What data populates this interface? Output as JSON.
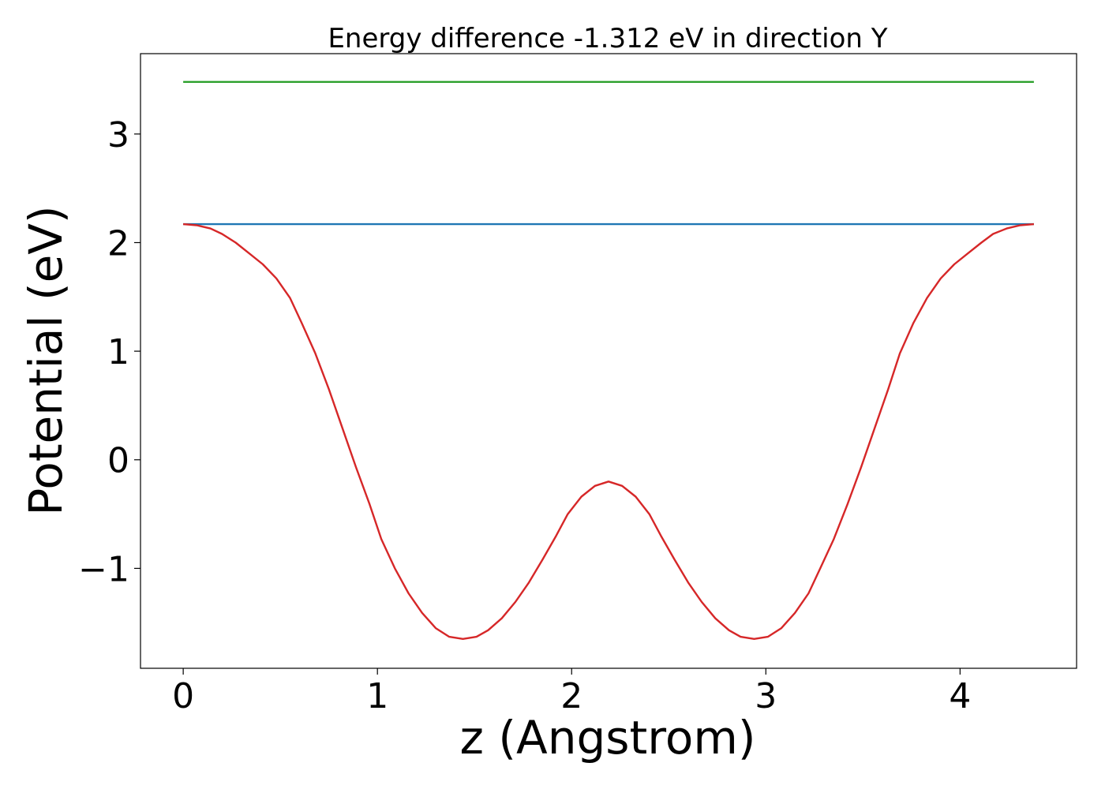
{
  "chart_data": {
    "type": "line",
    "title": "Energy difference -1.312 eV in direction Y",
    "xlabel": "z (Angstrom)",
    "ylabel": "Potential (eV)",
    "xlim": [
      -0.22,
      4.6
    ],
    "ylim": [
      -1.92,
      3.74
    ],
    "xticks": [
      0,
      1,
      2,
      3,
      4
    ],
    "xtick_labels": [
      "0",
      "1",
      "2",
      "3",
      "4"
    ],
    "yticks": [
      -1,
      0,
      1,
      2,
      3
    ],
    "ytick_labels": [
      "−1",
      "0",
      "1",
      "2",
      "3"
    ],
    "grid": false,
    "legend": "none",
    "series": [
      {
        "color": "#2ca02c",
        "x": [
          0,
          4.38
        ],
        "y": [
          3.48,
          3.48
        ]
      },
      {
        "color": "#1f77b4",
        "x": [
          0,
          4.38
        ],
        "y": [
          2.17,
          2.17
        ]
      },
      {
        "color": "#d62728",
        "x": [
          0,
          0.07,
          0.14,
          0.2,
          0.27,
          0.34,
          0.41,
          0.48,
          0.55,
          0.61,
          0.68,
          0.75,
          0.82,
          0.89,
          0.96,
          1.02,
          1.09,
          1.16,
          1.23,
          1.3,
          1.37,
          1.44,
          1.51,
          1.57,
          1.64,
          1.71,
          1.78,
          1.85,
          1.92,
          1.98,
          2.05,
          2.12,
          2.19,
          2.26,
          2.33,
          2.4,
          2.46,
          2.53,
          2.6,
          2.67,
          2.74,
          2.81,
          2.87,
          2.94,
          3.01,
          3.08,
          3.15,
          3.22,
          3.28,
          3.35,
          3.42,
          3.49,
          3.56,
          3.63,
          3.69,
          3.76,
          3.83,
          3.9,
          3.97,
          4.04,
          4.11,
          4.17,
          4.24,
          4.31,
          4.38
        ],
        "y": [
          2.17,
          2.16,
          2.13,
          2.08,
          2.0,
          1.9,
          1.8,
          1.67,
          1.49,
          1.26,
          0.98,
          0.65,
          0.29,
          -0.07,
          -0.41,
          -0.73,
          -1.0,
          -1.23,
          -1.41,
          -1.55,
          -1.63,
          -1.65,
          -1.63,
          -1.57,
          -1.46,
          -1.31,
          -1.13,
          -0.92,
          -0.7,
          -0.5,
          -0.34,
          -0.24,
          -0.2,
          -0.24,
          -0.34,
          -0.5,
          -0.7,
          -0.92,
          -1.13,
          -1.31,
          -1.46,
          -1.57,
          -1.63,
          -1.65,
          -1.63,
          -1.55,
          -1.41,
          -1.23,
          -1.0,
          -0.73,
          -0.41,
          -0.07,
          0.29,
          0.65,
          0.98,
          1.26,
          1.49,
          1.67,
          1.8,
          1.9,
          2.0,
          2.08,
          2.13,
          2.16,
          2.17
        ]
      }
    ]
  }
}
